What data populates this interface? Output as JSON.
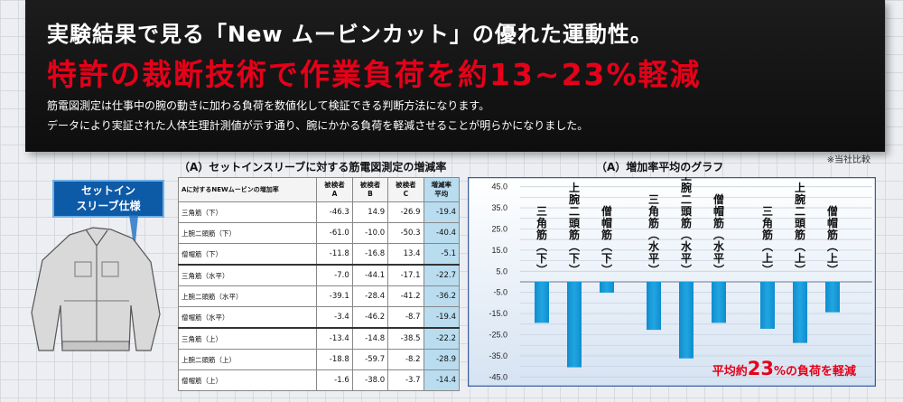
{
  "header": {
    "line1": "実験結果で見る「New ムービンカット」の優れた運動性。",
    "line2": "特許の裁断技術で作業負荷を約13~23%軽減",
    "desc1": "筋電図測定は仕事中の腕の動きに加わる負荷を数値化して検証できる判断方法になります。",
    "desc2": "データにより実証された人体生理計測値が示す通り、腕にかかる負荷を軽減させることが明らかになりました。"
  },
  "note": "※当社比較",
  "product_tag": {
    "line1": "セットイン",
    "line2": "スリーブ仕様"
  },
  "table": {
    "title": "（A）セットインスリーブに対する筋電図測定の増減率",
    "headers": [
      "Aに対するNEWムービンの増加率",
      "被検者\nA",
      "被検者\nB",
      "被検者\nC",
      "増減率\n平均"
    ],
    "rows": [
      [
        "三角筋（下）",
        "-46.3",
        "14.9",
        "-26.9",
        "-19.4"
      ],
      [
        "上腕二頭筋（下）",
        "-61.0",
        "-10.0",
        "-50.3",
        "-40.4"
      ],
      [
        "僧帽筋（下）",
        "-11.8",
        "-16.8",
        "13.4",
        "-5.1"
      ],
      [
        "三角筋（水平）",
        "-7.0",
        "-44.1",
        "-17.1",
        "-22.7"
      ],
      [
        "上腕二頭筋（水平）",
        "-39.1",
        "-28.4",
        "-41.2",
        "-36.2"
      ],
      [
        "僧帽筋（水平）",
        "-3.4",
        "-46.2",
        "-8.7",
        "-19.4"
      ],
      [
        "三角筋（上）",
        "-13.4",
        "-14.8",
        "-38.5",
        "-22.2"
      ],
      [
        "上腕二頭筋（上）",
        "-18.8",
        "-59.7",
        "-8.2",
        "-28.9"
      ],
      [
        "僧帽筋（上）",
        "-1.6",
        "-38.0",
        "-3.7",
        "-14.4"
      ]
    ]
  },
  "chart_data": {
    "type": "bar",
    "title": "（A）増加率平均のグラフ",
    "categories": [
      "三角筋(下)",
      "上腕二頭筋(下)",
      "僧帽筋(下)",
      "三角筋(水平)",
      "上腕二頭筋(水平)",
      "僧帽筋(水平)",
      "三角筋(上)",
      "上腕二頭筋(上)",
      "僧帽筋(上)"
    ],
    "values": [
      -19.4,
      -40.4,
      -5.1,
      -22.7,
      -36.2,
      -19.4,
      -22.2,
      -28.9,
      -14.4
    ],
    "yticks": [
      "45.0",
      "35.0",
      "25.0",
      "15.0",
      "5.0",
      "-5.0",
      "-15.0",
      "-25.0",
      "-35.0",
      "-45.0"
    ],
    "yticks_minor": [
      "40.0",
      "30.0",
      "20.0",
      "10.0",
      "0.0",
      "-10.0",
      "-20.0",
      "-30.0",
      "-40.0"
    ],
    "ylim": [
      -47,
      47
    ],
    "annotation": {
      "pre": "平均約",
      "num": "23",
      "post": "%の負荷を軽減"
    },
    "bar_color": "#21a6e0",
    "grid": true
  }
}
